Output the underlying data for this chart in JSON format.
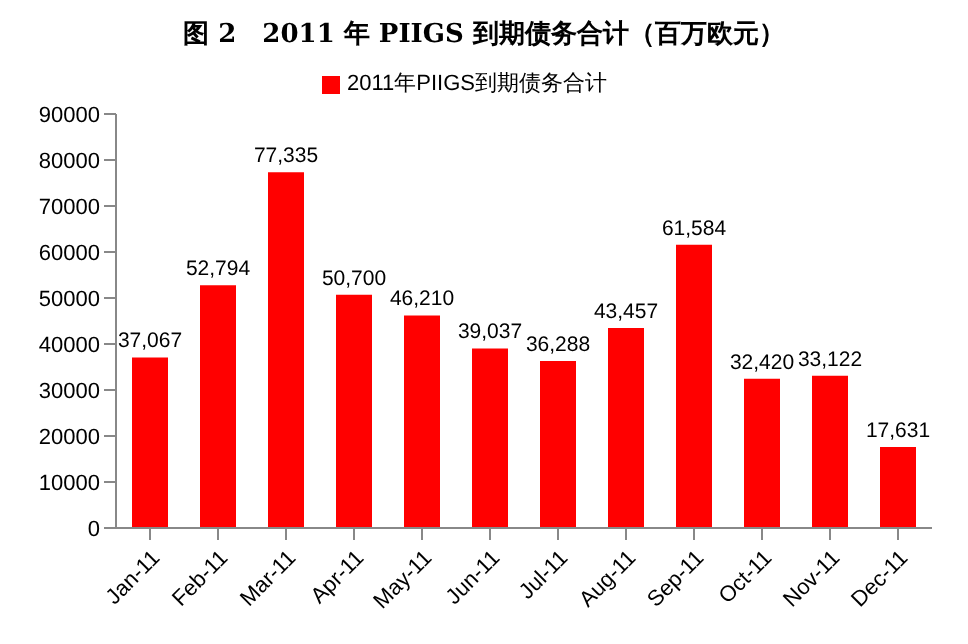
{
  "chart_data": {
    "type": "bar",
    "title": "图 2　2011 年 PIIGS 到期债务合计（百万欧元）",
    "categories": [
      "Jan-11",
      "Feb-11",
      "Mar-11",
      "Apr-11",
      "May-11",
      "Jun-11",
      "Jul-11",
      "Aug-11",
      "Sep-11",
      "Oct-11",
      "Nov-11",
      "Dec-11"
    ],
    "series": [
      {
        "name": "2011年PIIGS到期债务合计",
        "color": "#ff0000",
        "values": [
          37067,
          52794,
          77335,
          50700,
          46210,
          39037,
          36288,
          43457,
          61584,
          32420,
          33122,
          17631
        ],
        "value_labels": [
          "37,067",
          "52,794",
          "77,335",
          "50,700",
          "46,210",
          "39,037",
          "36,288",
          "43,457",
          "61,584",
          "32,420",
          "33,122",
          "17,631"
        ]
      }
    ],
    "ylim": [
      0,
      90000
    ],
    "yticks": [
      0,
      10000,
      20000,
      30000,
      40000,
      50000,
      60000,
      70000,
      80000,
      90000
    ],
    "grid": false,
    "legend": "top"
  }
}
